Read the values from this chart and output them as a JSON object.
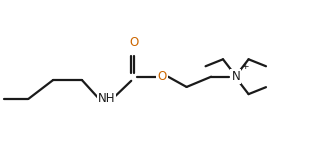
{
  "bg_color": "#ffffff",
  "line_color": "#1a1a1a",
  "line_width": 1.6,
  "o_color": "#cc6600",
  "n_color": "#1a1a1a",
  "font_size": 8.5,
  "figsize": [
    3.26,
    1.5
  ],
  "dpi": 100,
  "xlim": [
    0,
    9.5
  ],
  "ylim": [
    0,
    4.3
  ]
}
